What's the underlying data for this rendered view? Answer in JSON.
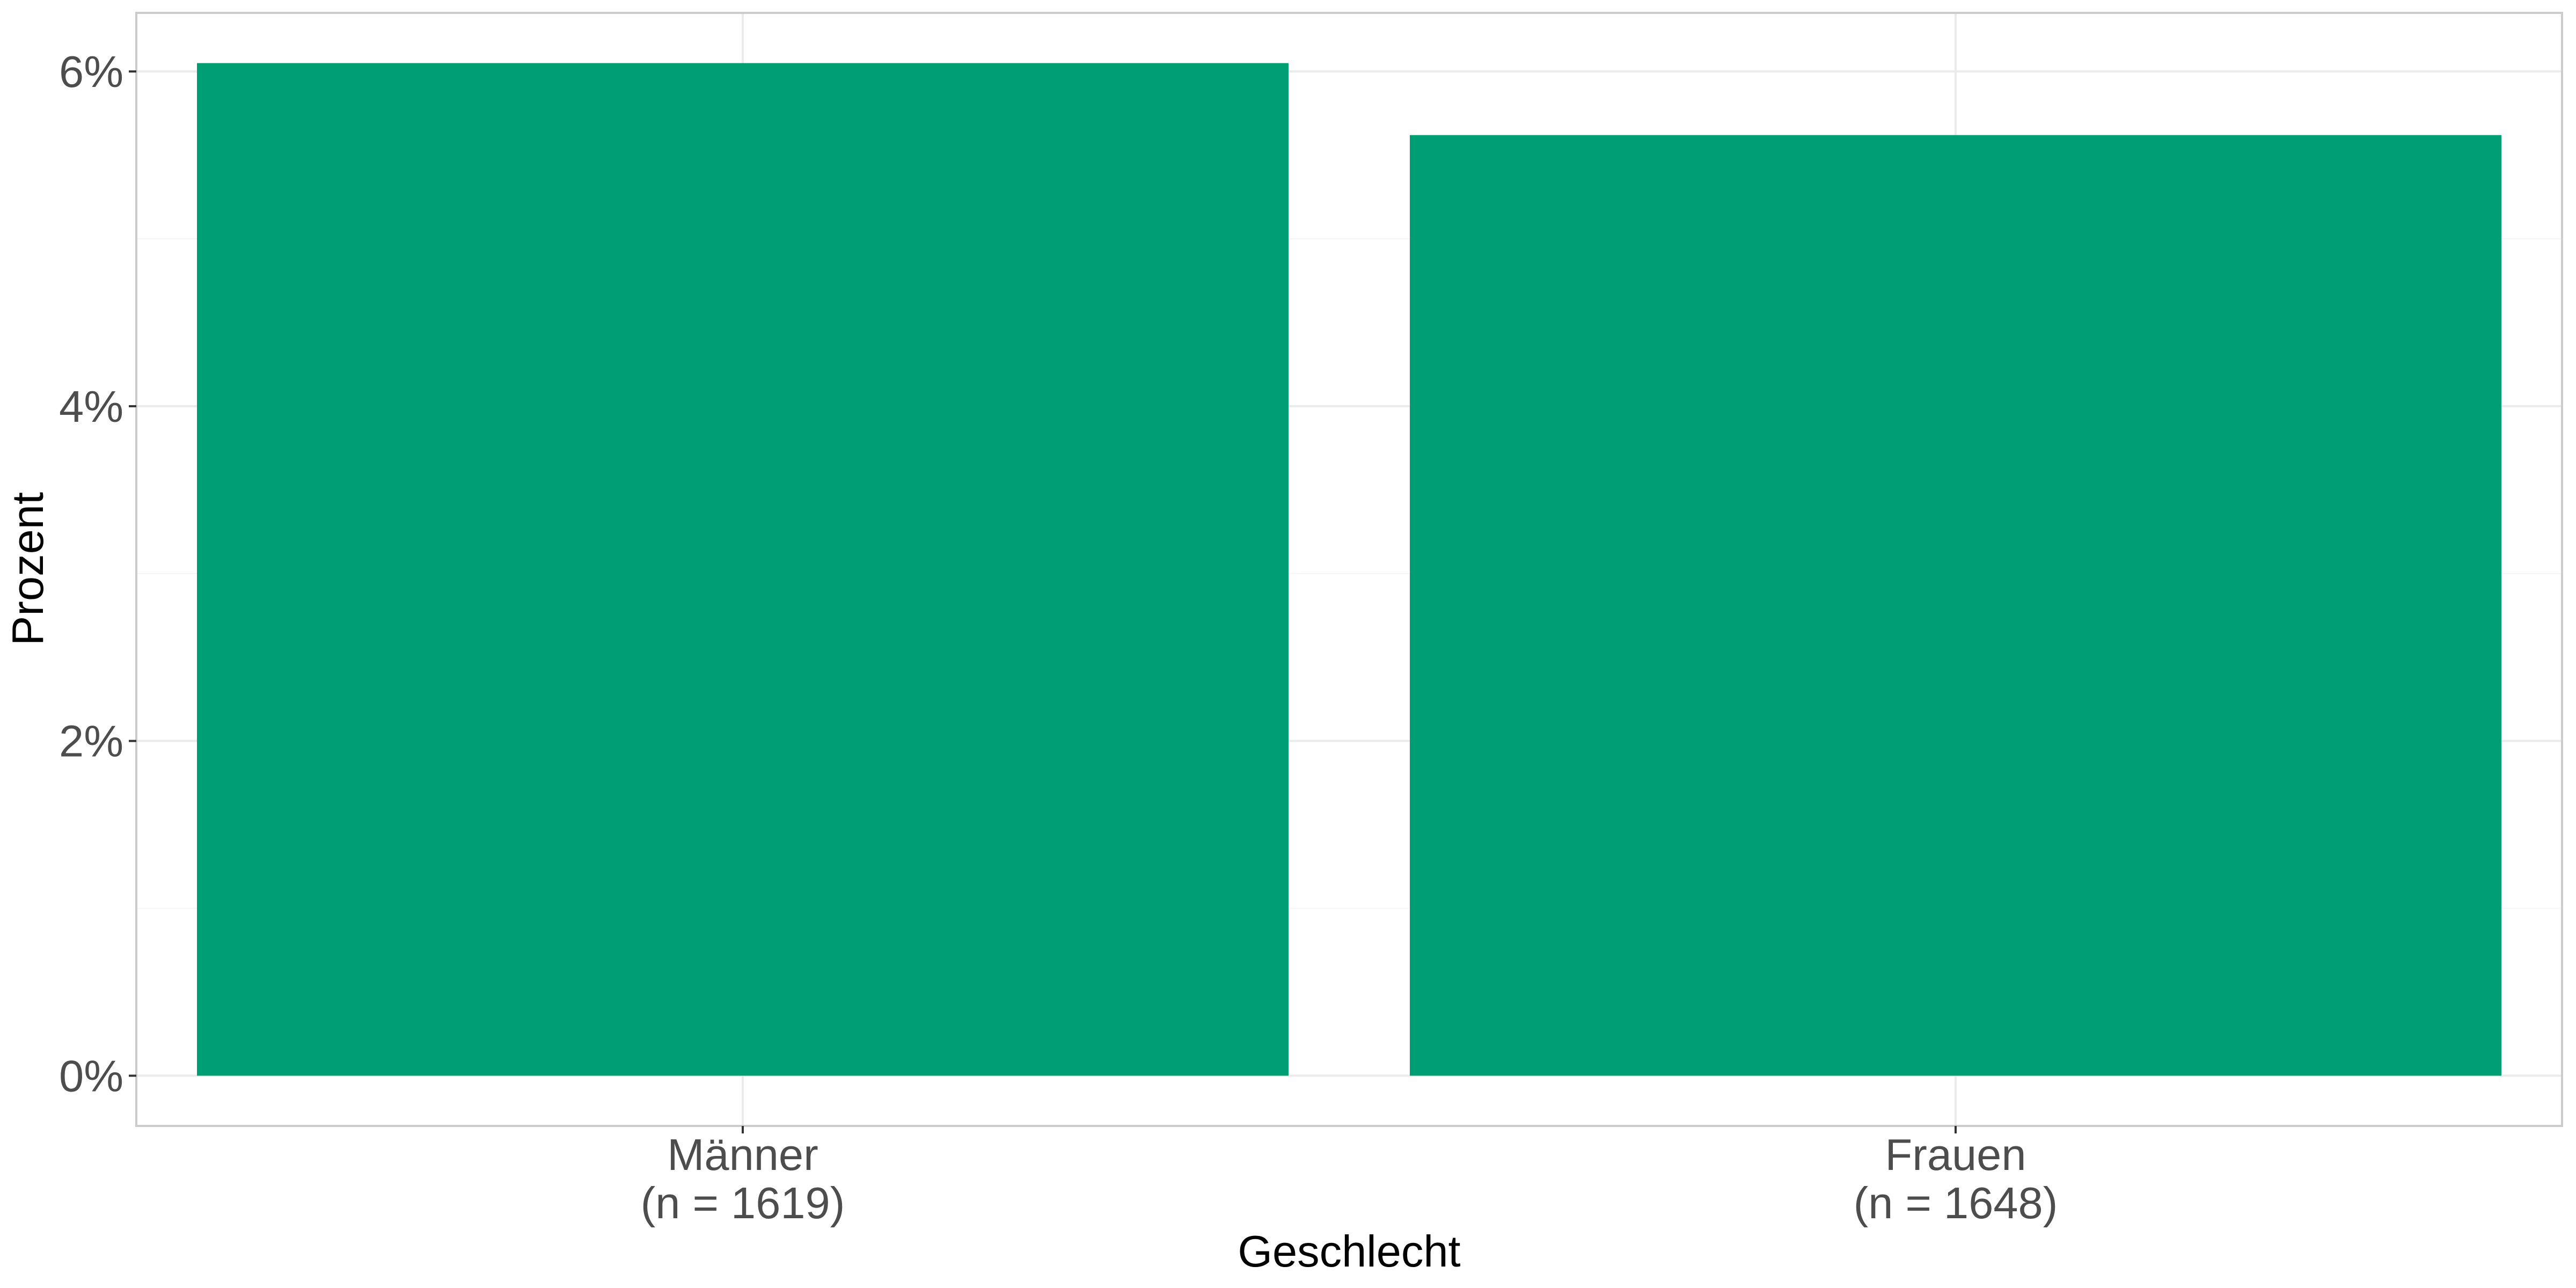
{
  "chart_data": {
    "type": "bar",
    "categories": [
      {
        "name": "Männer",
        "n_label": "(n = 1619)"
      },
      {
        "name": "Frauen",
        "n_label": "(n = 1648)"
      }
    ],
    "values": [
      6.05,
      5.62
    ],
    "unit": "%",
    "xlabel": "Geschlecht",
    "ylabel": "Prozent",
    "ylim": [
      -0.3,
      6.35
    ],
    "y_ticks": [
      0,
      2,
      4,
      6
    ],
    "y_tick_labels": [
      "0%",
      "2%",
      "4%",
      "6%"
    ],
    "grid": true,
    "legend": "none",
    "bar_color": "#009E73"
  }
}
